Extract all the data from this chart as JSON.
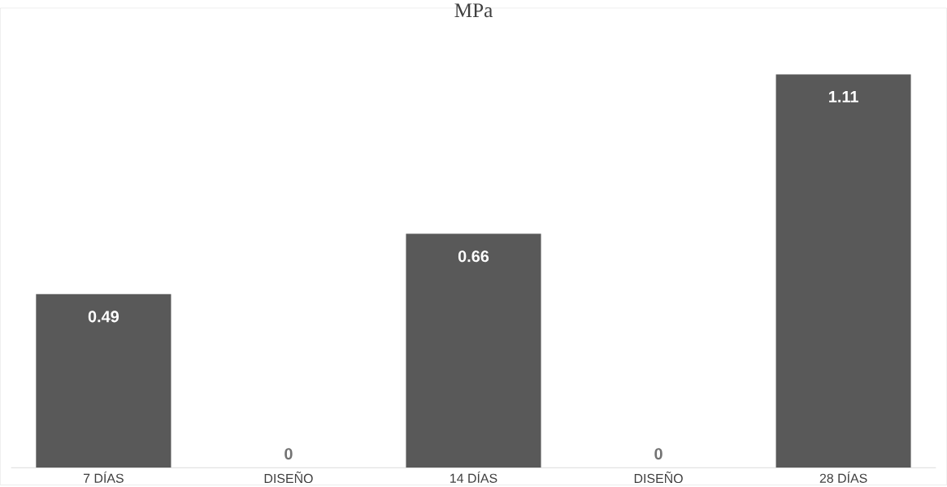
{
  "chart_data": {
    "type": "bar",
    "title": "MPa",
    "categories": [
      "7 DÍAS",
      "DISEÑO",
      "14 DÍAS",
      "DISEÑO",
      "28 DÍAS"
    ],
    "values": [
      0.49,
      0,
      0.66,
      0,
      1.11
    ],
    "color": "#595959",
    "data_labels": true
  }
}
